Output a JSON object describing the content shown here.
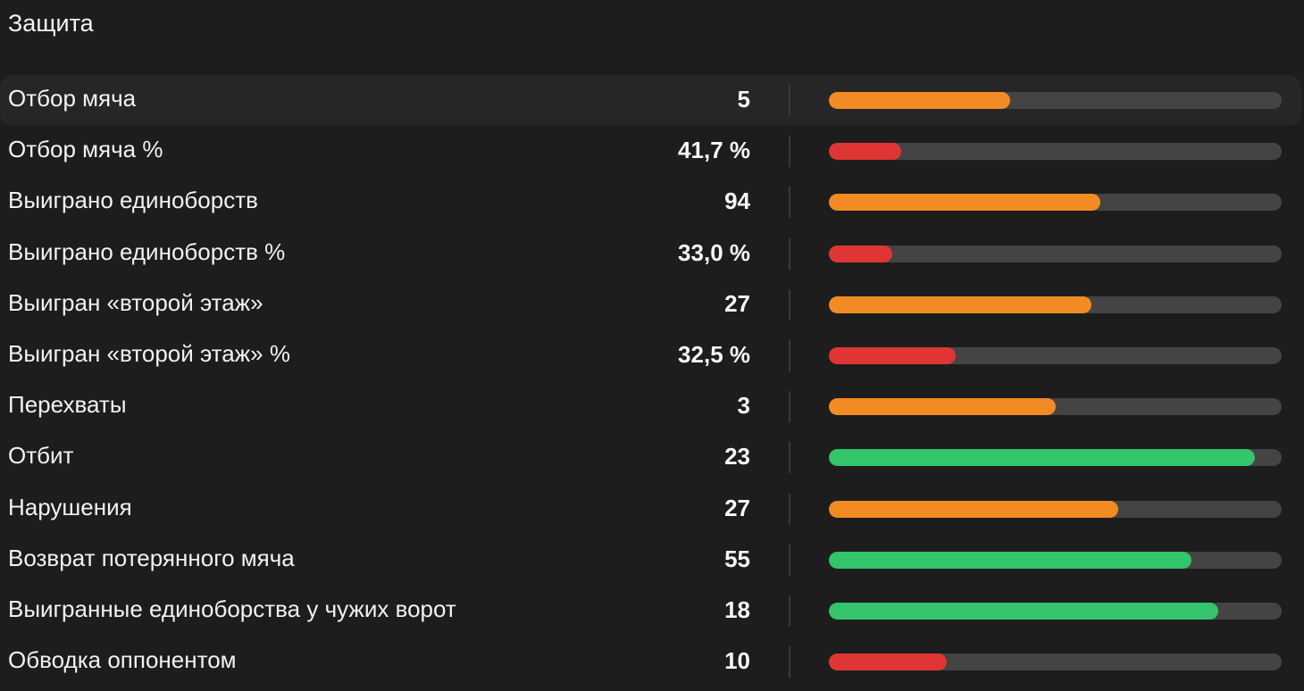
{
  "section": {
    "title": "Защита"
  },
  "colors": {
    "track": "#444444",
    "orange": "#f28b24",
    "red": "#e03535",
    "green": "#33c46c"
  },
  "stats": [
    {
      "label": "Отбор мяча",
      "value": "5",
      "fill": 0.4,
      "color": "orange"
    },
    {
      "label": "Отбор мяча %",
      "value": "41,7 %",
      "fill": 0.16,
      "color": "red"
    },
    {
      "label": "Выиграно единоборств",
      "value": "94",
      "fill": 0.6,
      "color": "orange"
    },
    {
      "label": "Выиграно единоборств %",
      "value": "33,0 %",
      "fill": 0.14,
      "color": "red"
    },
    {
      "label": "Выигран «второй этаж»",
      "value": "27",
      "fill": 0.58,
      "color": "orange"
    },
    {
      "label": "Выигран «второй этаж» %",
      "value": "32,5 %",
      "fill": 0.28,
      "color": "red"
    },
    {
      "label": "Перехваты",
      "value": "3",
      "fill": 0.5,
      "color": "orange"
    },
    {
      "label": "Отбит",
      "value": "23",
      "fill": 0.94,
      "color": "green"
    },
    {
      "label": "Нарушения",
      "value": "27",
      "fill": 0.64,
      "color": "orange"
    },
    {
      "label": "Возврат потерянного мяча",
      "value": "55",
      "fill": 0.8,
      "color": "green"
    },
    {
      "label": "Выигранные единоборства у чужих ворот",
      "value": "18",
      "fill": 0.86,
      "color": "green"
    },
    {
      "label": "Обводка оппонентом",
      "value": "10",
      "fill": 0.26,
      "color": "red"
    }
  ]
}
